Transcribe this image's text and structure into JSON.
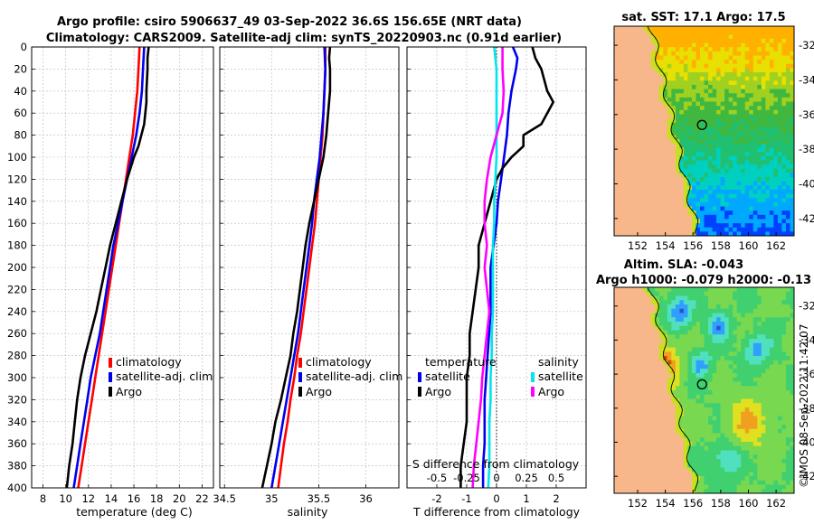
{
  "header": {
    "title_line1": "Argo profile: csiro 5906637_49 03-Sep-2022 36.6S 156.65E (NRT data)",
    "title_line2": "Climatology: CARS2009. Satellite-adj clim: synTS_20220903.nc (0.91d earlier)"
  },
  "colors": {
    "climatology": "#ff0000",
    "satellite": "#0000ee",
    "argo": "#000000",
    "salinity_satellite": "#00e5ee",
    "salinity_argo": "#ff00ff"
  },
  "depth_axis": {
    "ylim": [
      0,
      400
    ],
    "ticks": [
      "0",
      "20",
      "40",
      "60",
      "80",
      "100",
      "120",
      "140",
      "160",
      "180",
      "200",
      "220",
      "240",
      "260",
      "280",
      "300",
      "320",
      "340",
      "360",
      "380",
      "400"
    ]
  },
  "chart_data": [
    {
      "id": "temperature",
      "type": "line",
      "xlabel": "temperature (deg C)",
      "xlim": [
        7,
        23
      ],
      "xticks": [
        8,
        10,
        12,
        14,
        16,
        18,
        20,
        22
      ],
      "xtick_labels": [
        "8",
        "10",
        "12",
        "14",
        "16",
        "18",
        "20",
        "22"
      ],
      "ylim": [
        0,
        400
      ],
      "legend": [
        "climatology",
        "satellite-adj. clim",
        "Argo"
      ],
      "series": [
        {
          "name": "climatology",
          "depth": [
            0,
            20,
            40,
            60,
            80,
            100,
            120,
            140,
            160,
            180,
            200,
            220,
            240,
            260,
            280,
            300,
            320,
            340,
            360,
            380,
            400
          ],
          "values": [
            16.5,
            16.4,
            16.3,
            16.1,
            15.9,
            15.6,
            15.3,
            15.0,
            14.7,
            14.4,
            14.1,
            13.8,
            13.5,
            13.2,
            12.9,
            12.6,
            12.3,
            12.0,
            11.7,
            11.4,
            11.1
          ]
        },
        {
          "name": "satellite-adj. clim",
          "depth": [
            0,
            20,
            40,
            60,
            80,
            100,
            120,
            140,
            160,
            180,
            200,
            220,
            240,
            260,
            280,
            300,
            320,
            340,
            360,
            380,
            400
          ],
          "values": [
            16.9,
            16.8,
            16.7,
            16.5,
            16.2,
            15.8,
            15.4,
            15.0,
            14.6,
            14.2,
            13.9,
            13.6,
            13.3,
            13.0,
            12.6,
            12.2,
            11.9,
            11.6,
            11.3,
            11.0,
            10.7
          ]
        },
        {
          "name": "Argo",
          "depth": [
            0,
            10,
            20,
            40,
            50,
            70,
            90,
            100,
            110,
            120,
            140,
            160,
            180,
            200,
            220,
            240,
            260,
            280,
            300,
            320,
            340,
            360,
            380,
            400
          ],
          "values": [
            17.3,
            17.2,
            17.2,
            17.1,
            17.1,
            16.9,
            16.4,
            16.0,
            15.7,
            15.4,
            14.9,
            14.4,
            13.9,
            13.5,
            13.1,
            12.7,
            12.2,
            11.7,
            11.3,
            11.0,
            10.8,
            10.6,
            10.3,
            10.1
          ]
        }
      ]
    },
    {
      "id": "salinity",
      "type": "line",
      "xlabel": "salinity",
      "xlim": [
        34.45,
        36.35
      ],
      "xticks": [
        34.5,
        35,
        35.5,
        36
      ],
      "xtick_labels": [
        "34.5",
        "35",
        "35.5",
        "36"
      ],
      "ylim": [
        0,
        400
      ],
      "legend": [
        "climatology",
        "satellite-adj. clim",
        "Argo"
      ],
      "series": [
        {
          "name": "climatology",
          "depth": [
            0,
            20,
            40,
            60,
            80,
            100,
            120,
            140,
            160,
            180,
            200,
            220,
            240,
            260,
            280,
            300,
            320,
            340,
            360,
            380,
            400
          ],
          "values": [
            35.57,
            35.57,
            35.56,
            35.55,
            35.54,
            35.52,
            35.5,
            35.48,
            35.46,
            35.43,
            35.4,
            35.37,
            35.34,
            35.31,
            35.27,
            35.24,
            35.2,
            35.17,
            35.13,
            35.1,
            35.07
          ]
        },
        {
          "name": "satellite-adj. clim",
          "depth": [
            0,
            20,
            40,
            60,
            80,
            100,
            120,
            140,
            160,
            180,
            200,
            220,
            240,
            260,
            280,
            300,
            320,
            340,
            360,
            380,
            400
          ],
          "values": [
            35.56,
            35.57,
            35.56,
            35.55,
            35.53,
            35.51,
            35.48,
            35.45,
            35.43,
            35.4,
            35.37,
            35.34,
            35.31,
            35.28,
            35.24,
            35.2,
            35.16,
            35.12,
            35.08,
            35.04,
            35.0
          ]
        },
        {
          "name": "Argo",
          "depth": [
            0,
            10,
            20,
            40,
            60,
            80,
            100,
            120,
            140,
            160,
            180,
            200,
            220,
            240,
            260,
            280,
            300,
            320,
            340,
            360,
            380,
            400
          ],
          "values": [
            35.62,
            35.61,
            35.62,
            35.62,
            35.6,
            35.58,
            35.55,
            35.5,
            35.45,
            35.4,
            35.36,
            35.33,
            35.3,
            35.27,
            35.23,
            35.2,
            35.15,
            35.1,
            35.04,
            35.0,
            34.95,
            34.9
          ]
        }
      ]
    },
    {
      "id": "difference",
      "type": "line",
      "xlabel": "T difference from climatology",
      "top_label": "S difference from climatology",
      "xlim": [
        -3,
        3
      ],
      "xticks": [
        -2,
        -1,
        0,
        1,
        2
      ],
      "xtick_labels": [
        "-2",
        "-1",
        "0",
        "1",
        "2"
      ],
      "top_ticks": [
        -0.5,
        -0.25,
        0,
        0.25,
        0.5
      ],
      "top_tick_labels": [
        "-0.5",
        "-0.25",
        "0",
        "0.25",
        "0.5"
      ],
      "s_scale": 4,
      "ylim": [
        0,
        400
      ],
      "legend_temperature": [
        "temperature",
        "satellite",
        "Argo"
      ],
      "legend_salinity": [
        "salinity",
        "satellite",
        "Argo"
      ],
      "series": [
        {
          "name": "temperature satellite",
          "depth": [
            0,
            10,
            20,
            40,
            60,
            80,
            100,
            120,
            140,
            160,
            180,
            200,
            220,
            240,
            260,
            280,
            300,
            320,
            340,
            360,
            380,
            400
          ],
          "values": [
            0.55,
            0.7,
            0.65,
            0.5,
            0.4,
            0.35,
            0.25,
            0.15,
            0.05,
            0.0,
            -0.1,
            -0.2,
            -0.2,
            -0.2,
            -0.25,
            -0.3,
            -0.35,
            -0.4,
            -0.4,
            -0.4,
            -0.45,
            -0.45
          ]
        },
        {
          "name": "temperature Argo",
          "depth": [
            0,
            10,
            20,
            30,
            40,
            50,
            60,
            70,
            80,
            90,
            100,
            110,
            120,
            140,
            160,
            180,
            200,
            220,
            240,
            260,
            280,
            300,
            320,
            340,
            360,
            380,
            400
          ],
          "values": [
            1.2,
            1.3,
            1.5,
            1.6,
            1.7,
            1.9,
            1.7,
            1.5,
            0.9,
            0.9,
            0.5,
            0.2,
            0.0,
            -0.2,
            -0.4,
            -0.6,
            -0.6,
            -0.7,
            -0.8,
            -0.9,
            -0.9,
            -1.0,
            -1.0,
            -1.0,
            -1.1,
            -1.2,
            -1.2
          ]
        },
        {
          "name": "salinity satellite",
          "depth": [
            0,
            20,
            40,
            60,
            80,
            100,
            120,
            140,
            160,
            180,
            200,
            220,
            240,
            260,
            280,
            300,
            320,
            340,
            360,
            380,
            400
          ],
          "values": [
            -0.02,
            0.0,
            0.0,
            0.0,
            0.0,
            0.0,
            -0.01,
            -0.02,
            -0.02,
            -0.03,
            -0.03,
            -0.03,
            -0.03,
            -0.04,
            -0.04,
            -0.05,
            -0.05,
            -0.06,
            -0.06,
            -0.06,
            -0.07
          ]
        },
        {
          "name": "salinity Argo",
          "depth": [
            0,
            20,
            40,
            60,
            80,
            100,
            120,
            140,
            160,
            180,
            200,
            220,
            240,
            260,
            280,
            300,
            320,
            340,
            360,
            380,
            400
          ],
          "values": [
            0.05,
            0.05,
            0.06,
            0.05,
            0.0,
            -0.05,
            -0.08,
            -0.1,
            -0.1,
            -0.08,
            -0.1,
            -0.08,
            -0.06,
            -0.08,
            -0.1,
            -0.12,
            -0.13,
            -0.15,
            -0.17,
            -0.19,
            -0.2
          ]
        }
      ]
    },
    {
      "id": "sst_map",
      "type": "heatmap",
      "title": "sat. SST: 17.1 Argo: 17.5",
      "x_ticks": [
        "152",
        "154",
        "156",
        "158",
        "160",
        "162"
      ],
      "y_ticks": [
        "-32",
        "-34",
        "-36",
        "-38",
        "-40",
        "-42"
      ],
      "xlim": [
        150.3,
        163.3
      ],
      "ylim": [
        -43.0,
        -30.9
      ],
      "marker": {
        "lon": 156.65,
        "lat": -36.6
      },
      "palette": [
        "#00008b",
        "#0040ff",
        "#00a8ff",
        "#00d0c0",
        "#20c070",
        "#40b840",
        "#a0d020",
        "#e8e000",
        "#ffb000"
      ]
    },
    {
      "id": "sla_map",
      "type": "heatmap",
      "title_line1": "Altim. SLA: -0.043",
      "title_line2": "Argo h1000: -0.079 h2000: -0.13",
      "x_ticks": [
        "152",
        "154",
        "156",
        "158",
        "160",
        "162"
      ],
      "y_ticks": [
        "-32",
        "-34",
        "-36",
        "-38",
        "-40",
        "-42"
      ],
      "xlim": [
        150.3,
        163.3
      ],
      "ylim": [
        -43.0,
        -30.9
      ],
      "marker": {
        "lon": 156.65,
        "lat": -36.6
      },
      "palette": [
        "#3050d0",
        "#30a0ff",
        "#50e0c0",
        "#40d070",
        "#78d850",
        "#e0e020",
        "#f0a020",
        "#d05010",
        "#a02000"
      ]
    }
  ],
  "watermark": "©IMOS 08-Sep-2022 11:42:07"
}
